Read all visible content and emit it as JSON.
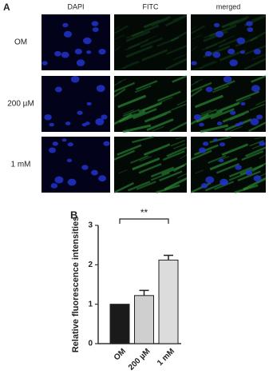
{
  "panel_a": {
    "label": "A",
    "columns": [
      "DAPI",
      "FITC",
      "merged"
    ],
    "rows": [
      "OM",
      "200 µM",
      "1 mM"
    ]
  },
  "panel_b_label": "B",
  "chart_data": {
    "type": "bar",
    "ylabel": "Relative fluorescence intensities",
    "categories": [
      "OM",
      "200 µM",
      "1 mM"
    ],
    "values": [
      1.0,
      1.22,
      2.12
    ],
    "errors": [
      null,
      0.13,
      0.12
    ],
    "colors": [
      "#1a1a1a",
      "#cfcfcf",
      "#dcdcdc"
    ],
    "ylim": [
      0,
      3
    ],
    "yticks": [
      0,
      1,
      2,
      3
    ],
    "annotation": "**"
  }
}
